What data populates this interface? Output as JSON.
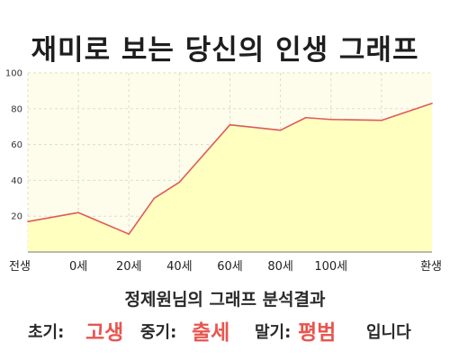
{
  "page": {
    "title": "재미로 보는 당신의 인생 그래프"
  },
  "chart_data": {
    "type": "area",
    "title": "재미로 보는 당신의 인생 그래프",
    "xlabel": "",
    "ylabel": "",
    "x_ticks": [
      "전생",
      "0세",
      "20세",
      "40세",
      "60세",
      "80세",
      "100세",
      "환생"
    ],
    "y_ticks": [
      20,
      40,
      60,
      80,
      100
    ],
    "ylim": [
      0,
      100
    ],
    "grid": true,
    "legend": "none",
    "series": [
      {
        "x": [
          -1,
          0,
          1,
          1.5,
          2,
          3,
          4,
          4.5,
          5,
          6,
          7
        ],
        "values": [
          17,
          22,
          10,
          30,
          39,
          71,
          68,
          75,
          74,
          73.5,
          83
        ]
      }
    ],
    "colors": {
      "fill": "#ffffc0",
      "line": "#e05a5a",
      "background": "#fefdeb",
      "grid": "#e0dcc8"
    }
  },
  "result": {
    "title": "정제원님의 그래프 분석결과",
    "early_label": "초기:",
    "early_value": "고생",
    "middle_label": "중기:",
    "middle_value": "출세",
    "late_label": "말기:",
    "late_value": "평범",
    "suffix": "입니다"
  }
}
